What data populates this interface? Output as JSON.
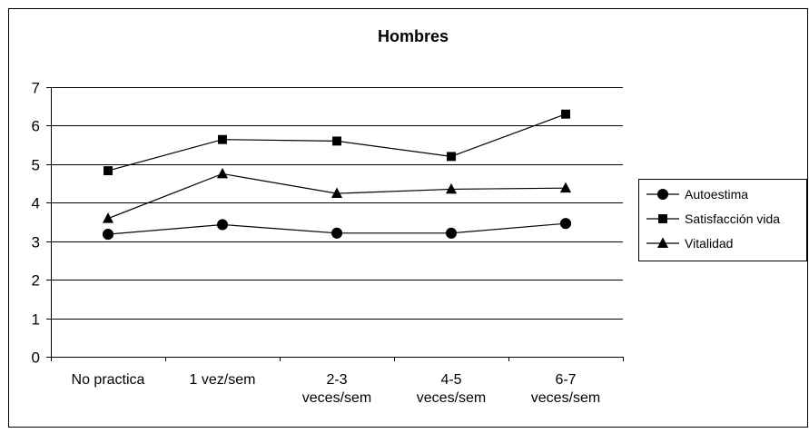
{
  "chart_data": {
    "type": "line",
    "title": "Hombres",
    "xlabel": "",
    "ylabel": "",
    "categories": [
      [
        "No practica"
      ],
      [
        "1 vez/sem"
      ],
      [
        "2-3",
        "veces/sem"
      ],
      [
        "4-5",
        "veces/sem"
      ],
      [
        "6-7",
        "veces/sem"
      ]
    ],
    "ylim": [
      0,
      7
    ],
    "yticks": [
      "0",
      "1",
      "2",
      "3",
      "4",
      "5",
      "6",
      "7"
    ],
    "grid": true,
    "legend_position": "right",
    "series": [
      {
        "name": "Autoestima",
        "marker": "circle",
        "color": "#000000",
        "values": [
          3.18,
          3.43,
          3.21,
          3.21,
          3.46
        ]
      },
      {
        "name": "Satisfacción vida",
        "marker": "square",
        "color": "#000000",
        "values": [
          4.83,
          5.64,
          5.6,
          5.2,
          6.3
        ]
      },
      {
        "name": "Vitalidad",
        "marker": "triangle",
        "color": "#000000",
        "values": [
          3.59,
          4.75,
          4.24,
          4.35,
          4.38
        ]
      }
    ]
  }
}
